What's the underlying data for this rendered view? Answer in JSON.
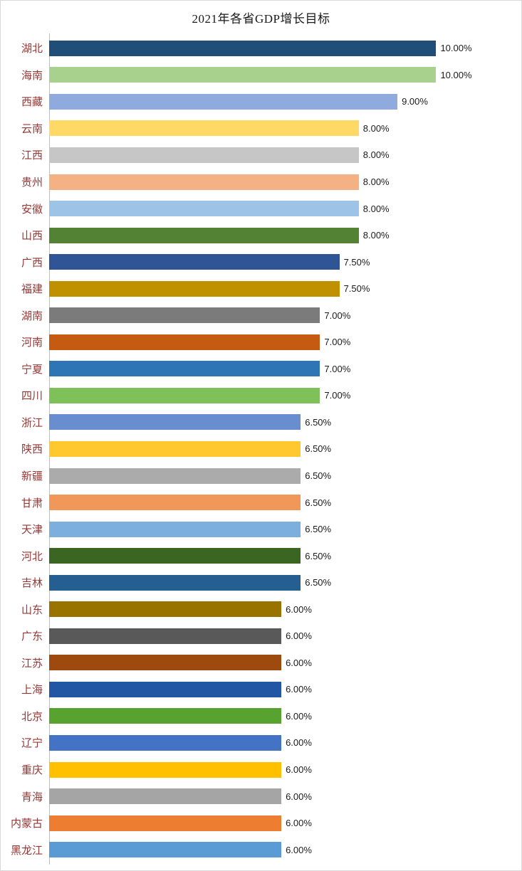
{
  "chart_data": {
    "type": "bar",
    "orientation": "horizontal",
    "title": "2021年各省GDP增长目标",
    "categories": [
      "湖北",
      "海南",
      "西藏",
      "云南",
      "江西",
      "贵州",
      "安徽",
      "山西",
      "广西",
      "福建",
      "湖南",
      "河南",
      "宁夏",
      "四川",
      "浙江",
      "陕西",
      "新疆",
      "甘肃",
      "天津",
      "河北",
      "吉林",
      "山东",
      "广东",
      "江苏",
      "上海",
      "北京",
      "辽宁",
      "重庆",
      "青海",
      "内蒙古",
      "黑龙江"
    ],
    "values": [
      10,
      10,
      9,
      8,
      8,
      8,
      8,
      8,
      7.5,
      7.5,
      7,
      7,
      7,
      7,
      6.5,
      6.5,
      6.5,
      6.5,
      6.5,
      6.5,
      6.5,
      6,
      6,
      6,
      6,
      6,
      6,
      6,
      6,
      6,
      6
    ],
    "value_labels": [
      "10.00%",
      "10.00%",
      "9.00%",
      "8.00%",
      "8.00%",
      "8.00%",
      "8.00%",
      "8.00%",
      "7.50%",
      "7.50%",
      "7.00%",
      "7.00%",
      "7.00%",
      "7.00%",
      "6.50%",
      "6.50%",
      "6.50%",
      "6.50%",
      "6.50%",
      "6.50%",
      "6.50%",
      "6.00%",
      "6.00%",
      "6.00%",
      "6.00%",
      "6.00%",
      "6.00%",
      "6.00%",
      "6.00%",
      "6.00%",
      "6.00%"
    ],
    "bar_colors": [
      "#1F4E79",
      "#A9D18E",
      "#8FAADC",
      "#FFD966",
      "#C6C6C6",
      "#F4B183",
      "#9DC3E6",
      "#548235",
      "#2F5597",
      "#BF9000",
      "#7B7B7B",
      "#C55A11",
      "#2E75B6",
      "#7EC158",
      "#698ED0",
      "#FFC82E",
      "#ABABAB",
      "#F1975A",
      "#7CAFDD",
      "#3B6622",
      "#255E91",
      "#997300",
      "#595959",
      "#9E4A0E",
      "#2156A5",
      "#58A32F",
      "#4472C4",
      "#FFC000",
      "#A5A5A5",
      "#ED7D31",
      "#5B9BD5"
    ],
    "xlim": [
      0,
      12.2
    ],
    "grid": false,
    "legend": false,
    "value_label_position": "outside-end",
    "styles": {
      "background": "#FFFFFF",
      "border_color": "#D9D9D9",
      "axis_line_color": "#BFBFBF",
      "title_color": "#1A1A1A",
      "category_label_color": "#953735",
      "value_label_color": "#1A1A1A"
    }
  }
}
